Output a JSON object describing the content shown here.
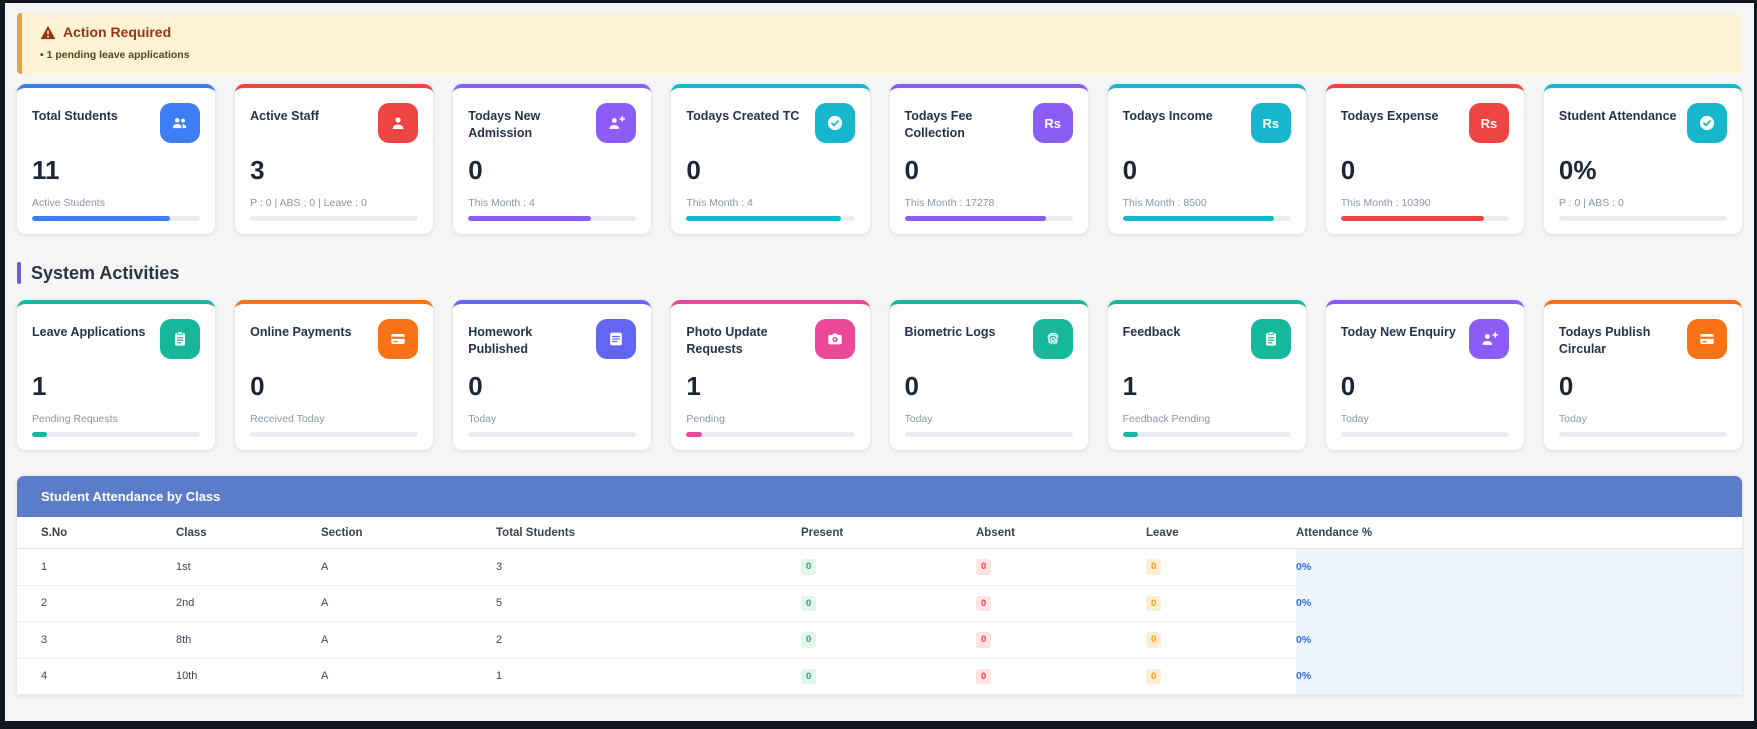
{
  "alert": {
    "icon": "warning-triangle-icon",
    "title": "Action Required",
    "items": [
      "1 pending leave applications"
    ],
    "bg_color": "#fcf3d4",
    "accent_color": "#e7a33c",
    "title_color": "#9c3412"
  },
  "stat_cards": [
    {
      "title": "Total Students",
      "icon": "users-icon",
      "color": "#3d7ef5",
      "value": "11",
      "subtitle": "Active Students",
      "progress_pct": 82
    },
    {
      "title": "Active Staff",
      "icon": "user-icon",
      "color": "#ef4444",
      "value": "3",
      "subtitle": "P : 0 | ABS : 0 | Leave : 0",
      "progress_pct": 0
    },
    {
      "title": "Todays New Admission",
      "icon": "user-plus-icon",
      "color": "#8b5cf6",
      "value": "0",
      "subtitle": "This Month : 4",
      "progress_pct": 73
    },
    {
      "title": "Todays Created TC",
      "icon": "check-circle-icon",
      "color": "#17b6cc",
      "value": "0",
      "subtitle": "This Month : 4",
      "progress_pct": 92
    },
    {
      "title": "Todays Fee Collection",
      "icon": "rupee-icon",
      "color": "#8b5cf6",
      "value": "0",
      "subtitle": "This Month : 17278",
      "progress_pct": 84
    },
    {
      "title": "Todays Income",
      "icon": "rupee-icon",
      "color": "#17b6cc",
      "value": "0",
      "subtitle": "This Month : 8500",
      "progress_pct": 90
    },
    {
      "title": "Todays Expense",
      "icon": "rupee-icon",
      "color": "#ef4444",
      "value": "0",
      "subtitle": "This Month : 10390",
      "progress_pct": 85
    },
    {
      "title": "Student Attendance",
      "icon": "check-circle-icon",
      "color": "#17b6cc",
      "value": "0%",
      "subtitle": "P : 0 | ABS : 0",
      "progress_pct": 0
    }
  ],
  "section": {
    "title": "System Activities",
    "accent_color": "#6f5bd6"
  },
  "activity_cards": [
    {
      "title": "Leave Applications",
      "icon": "clipboard-icon",
      "color": "#16b79b",
      "value": "1",
      "subtitle": "Pending Requests",
      "progress_pct": 9
    },
    {
      "title": "Online Payments",
      "icon": "credit-card-icon",
      "color": "#f97316",
      "value": "0",
      "subtitle": "Received Today",
      "progress_pct": 0
    },
    {
      "title": "Homework Published",
      "icon": "book-icon",
      "color": "#6366f1",
      "value": "0",
      "subtitle": "Today",
      "progress_pct": 0
    },
    {
      "title": "Photo Update Requests",
      "icon": "camera-icon",
      "color": "#ec4899",
      "value": "1",
      "subtitle": "Pending",
      "progress_pct": 9
    },
    {
      "title": "Biometric Logs",
      "icon": "fingerprint-icon",
      "color": "#16b79b",
      "value": "0",
      "subtitle": "Today",
      "progress_pct": 0
    },
    {
      "title": "Feedback",
      "icon": "clipboard-icon",
      "color": "#16b79b",
      "value": "1",
      "subtitle": "Feedback Pending",
      "progress_pct": 9
    },
    {
      "title": "Today New Enquiry",
      "icon": "user-plus-icon",
      "color": "#8b5cf6",
      "value": "0",
      "subtitle": "Today",
      "progress_pct": 0
    },
    {
      "title": "Todays Publish Circular",
      "icon": "credit-card-icon",
      "color": "#f97316",
      "value": "0",
      "subtitle": "Today",
      "progress_pct": 0
    }
  ],
  "attendance_table": {
    "title": "Student Attendance by Class",
    "header_bg": "#5b7dc9",
    "columns": [
      "S.No",
      "Class",
      "Section",
      "Total Students",
      "Present",
      "Absent",
      "Leave",
      "Attendance %"
    ],
    "rows": [
      {
        "sno": "1",
        "class": "1st",
        "section": "A",
        "total": "3",
        "present": "0",
        "absent": "0",
        "leave": "0",
        "attendance": "0%"
      },
      {
        "sno": "2",
        "class": "2nd",
        "section": "A",
        "total": "5",
        "present": "0",
        "absent": "0",
        "leave": "0",
        "attendance": "0%"
      },
      {
        "sno": "3",
        "class": "8th",
        "section": "A",
        "total": "2",
        "present": "0",
        "absent": "0",
        "leave": "0",
        "attendance": "0%"
      },
      {
        "sno": "4",
        "class": "10th",
        "section": "A",
        "total": "1",
        "present": "0",
        "absent": "0",
        "leave": "0",
        "attendance": "0%"
      }
    ],
    "badge_colors": {
      "present_bg": "#e2f5eb",
      "present_text": "#27a36c",
      "absent_bg": "#fde3e3",
      "absent_text": "#ee4444",
      "leave_bg": "#fdeed3",
      "leave_text": "#eb9f1b",
      "attendance_col_bg": "#eef4fc",
      "attendance_text": "#2e6fd9"
    }
  }
}
